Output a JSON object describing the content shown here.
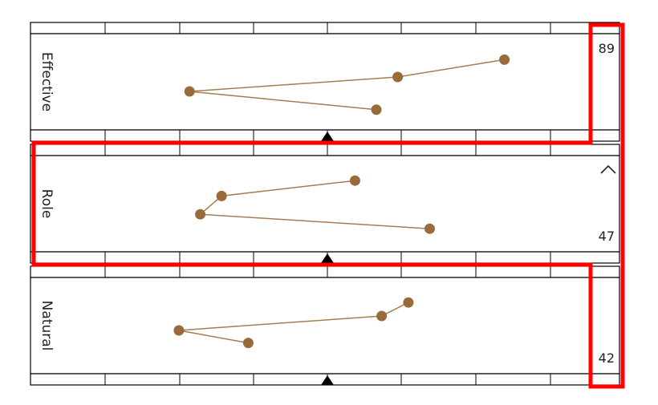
{
  "colors": {
    "marker": "#9a6b3a",
    "line": "#a67c52",
    "highlight": "#ff0000",
    "ruler": "#000000"
  },
  "panels": [
    {
      "label": "Effective",
      "value": "89",
      "points": [
        [
          0.84,
          0.27
        ],
        [
          0.64,
          0.45
        ],
        [
          0.25,
          0.6
        ],
        [
          0.6,
          0.79
        ]
      ]
    },
    {
      "label": "Role",
      "value": "47",
      "show_collapse": true,
      "points": [
        [
          0.56,
          0.26
        ],
        [
          0.31,
          0.42
        ],
        [
          0.27,
          0.61
        ],
        [
          0.7,
          0.76
        ]
      ]
    },
    {
      "label": "Natural",
      "value": "42",
      "points": [
        [
          0.66,
          0.26
        ],
        [
          0.61,
          0.4
        ],
        [
          0.23,
          0.55
        ],
        [
          0.36,
          0.68
        ]
      ]
    }
  ],
  "icons": {
    "collapse": "chevron-up-icon",
    "pointer": "triangle-pointer-icon"
  }
}
